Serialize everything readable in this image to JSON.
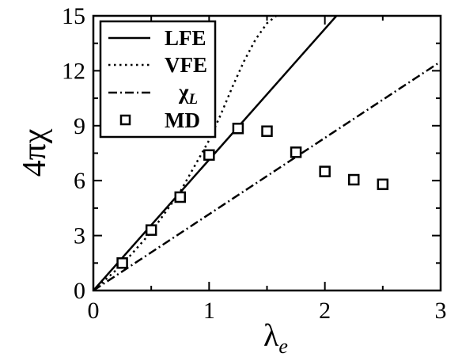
{
  "chart_data": {
    "type": "line",
    "xlabel": "λ",
    "xlabel_sub": "e",
    "ylabel": "4πχ",
    "xlim": [
      0,
      3
    ],
    "ylim": [
      0,
      15
    ],
    "xticks": [
      "0",
      "1",
      "2",
      "3"
    ],
    "xtick_values": [
      0,
      1,
      2,
      3
    ],
    "yticks": [
      "0",
      "3",
      "6",
      "9",
      "12",
      "15"
    ],
    "ytick_values": [
      0,
      3,
      6,
      9,
      12,
      15
    ],
    "grid": false,
    "legend_position": "top-left",
    "series": [
      {
        "name": "LFE",
        "style": "solid",
        "x": [
          0,
          2.1
        ],
        "y": [
          0,
          15.0
        ]
      },
      {
        "name": "VFE",
        "style": "dotted",
        "x": [
          0,
          0.25,
          0.5,
          0.75,
          1.0,
          1.1,
          1.2,
          1.3,
          1.4,
          1.5,
          1.58
        ],
        "y": [
          0,
          1.42,
          3.2,
          5.4,
          8.2,
          9.6,
          11.1,
          12.5,
          13.7,
          14.6,
          15.0
        ]
      },
      {
        "name": "χ",
        "name_sub": "L",
        "style": "dashdot",
        "x": [
          0,
          3
        ],
        "y": [
          0,
          12.5
        ]
      },
      {
        "name": "MD",
        "style": "markers",
        "x": [
          0.25,
          0.5,
          0.75,
          1.0,
          1.25,
          1.5,
          1.75,
          2.0,
          2.25,
          2.5
        ],
        "y": [
          1.5,
          3.3,
          5.1,
          7.4,
          8.85,
          8.7,
          7.55,
          6.5,
          6.05,
          5.8
        ]
      }
    ]
  }
}
